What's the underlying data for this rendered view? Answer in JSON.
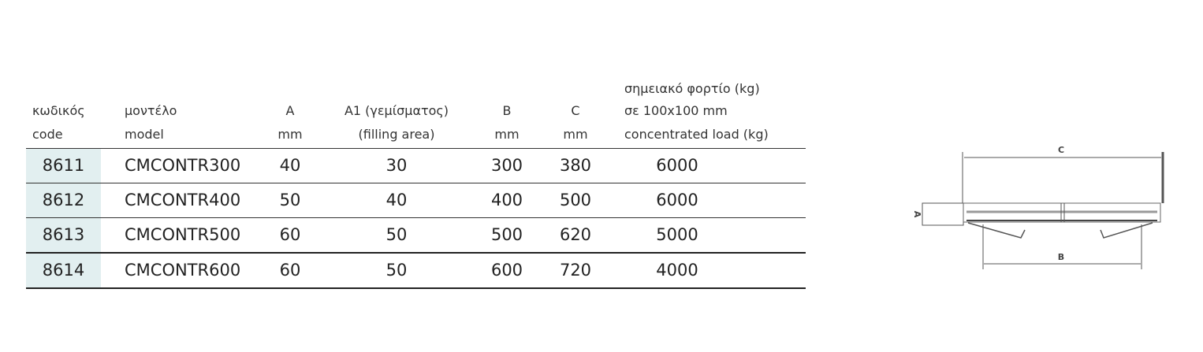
{
  "headers": {
    "code": [
      "κωδικός",
      "code"
    ],
    "model": [
      "μοντέλο",
      "model"
    ],
    "a": [
      "A",
      "mm"
    ],
    "a1": [
      "A1 (γεμίσματος)",
      "(filling area)"
    ],
    "b": [
      "B",
      "mm"
    ],
    "c": [
      "C",
      "mm"
    ],
    "load": [
      "σημειακό φορτίο (kg)",
      "σε 100x100 mm",
      "concentrated load (kg)"
    ]
  },
  "rows": [
    {
      "code": "8611",
      "model": "CMCONTR300",
      "a": "40",
      "a1": "30",
      "b": "300",
      "c": "380",
      "load": "6000"
    },
    {
      "code": "8612",
      "model": "CMCONTR400",
      "a": "50",
      "a1": "40",
      "b": "400",
      "c": "500",
      "load": "6000"
    },
    {
      "code": "8613",
      "model": "CMCONTR500",
      "a": "60",
      "a1": "50",
      "b": "500",
      "c": "620",
      "load": "5000"
    },
    {
      "code": "8614",
      "model": "CMCONTR600",
      "a": "60",
      "a1": "50",
      "b": "600",
      "c": "720",
      "load": "4000"
    }
  ],
  "diagram": {
    "label_a": "A",
    "label_b": "B",
    "label_c": "C"
  },
  "colors": {
    "code_bg": "#e2eff0"
  }
}
